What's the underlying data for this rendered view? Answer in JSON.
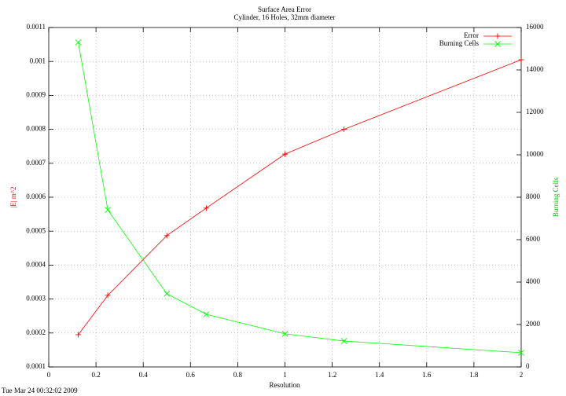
{
  "chart_data": {
    "type": "line",
    "title": "Surface Area Error",
    "subtitle": "Cylinder, 16 Holes, 32mm diameter",
    "x_label": "Resolution",
    "y_label": "|E| m^2",
    "y2_label": "Burning Cells",
    "timestamp": "Tue Mar 24 00:32:02 2009",
    "x": [
      0.125,
      0.25,
      0.5,
      0.667,
      1.0,
      1.25,
      2.0
    ],
    "series": [
      {
        "name": "Error",
        "color": "#ff0000",
        "marker": "plus",
        "values": [
          0.000195,
          0.000311,
          0.000487,
          0.000568,
          0.000727,
          0.0008,
          0.001005
        ]
      },
      {
        "name": "Burning Cells",
        "color": "#00ff00",
        "marker": "cross",
        "axis": "y2",
        "values": [
          15300,
          7400,
          3450,
          2480,
          1560,
          1220,
          670
        ]
      }
    ],
    "xlim": [
      0,
      2
    ],
    "xticks": [
      0,
      0.2,
      0.4,
      0.6,
      0.8,
      1,
      1.2,
      1.4,
      1.6,
      1.8,
      2
    ],
    "ylim": [
      0.0001,
      0.0011
    ],
    "yticks": [
      0.0001,
      0.0002,
      0.0003,
      0.0004,
      0.0005,
      0.0006,
      0.0007,
      0.0008,
      0.0009,
      0.001,
      0.0011
    ],
    "y2lim": [
      0,
      16000
    ],
    "y2ticks": [
      0,
      2000,
      4000,
      6000,
      8000,
      10000,
      12000,
      14000,
      16000
    ],
    "grid": true,
    "legend": "top-right"
  }
}
